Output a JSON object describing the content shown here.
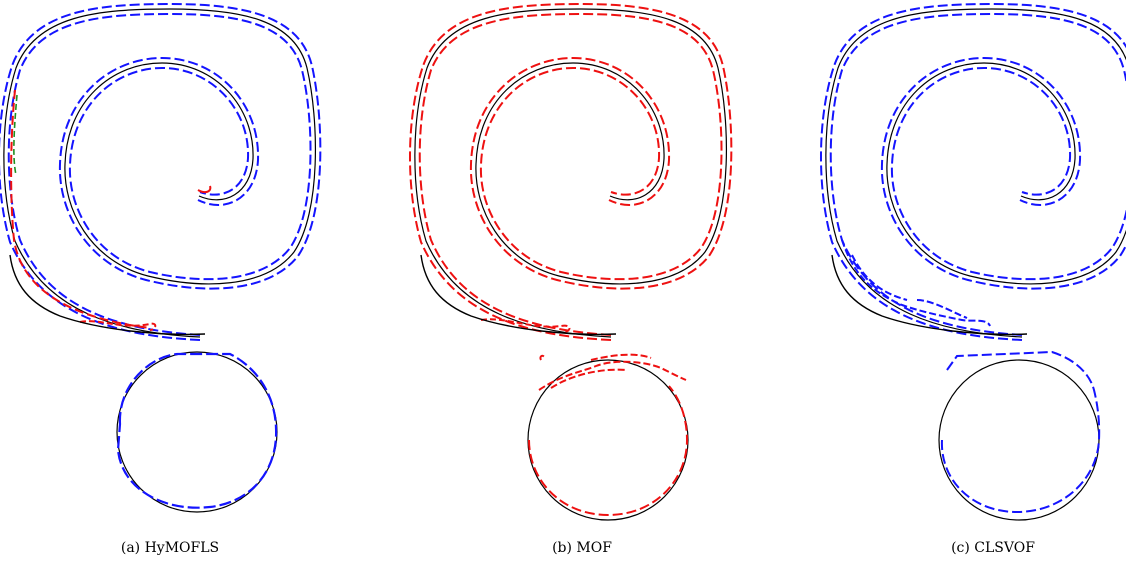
{
  "panels": [
    {
      "id": "a",
      "caption": "(a) HyMOFLS",
      "colors": {
        "reference": "#000000",
        "primary": "#1414ff",
        "secondary": "#ee1111",
        "tertiary": "#1f8f1f"
      }
    },
    {
      "id": "b",
      "caption": "(b) MOF",
      "colors": {
        "reference": "#000000",
        "primary": "#ee1111"
      }
    },
    {
      "id": "c",
      "caption": "(c) CLSVOF",
      "colors": {
        "reference": "#000000",
        "primary": "#1414ff"
      }
    }
  ]
}
